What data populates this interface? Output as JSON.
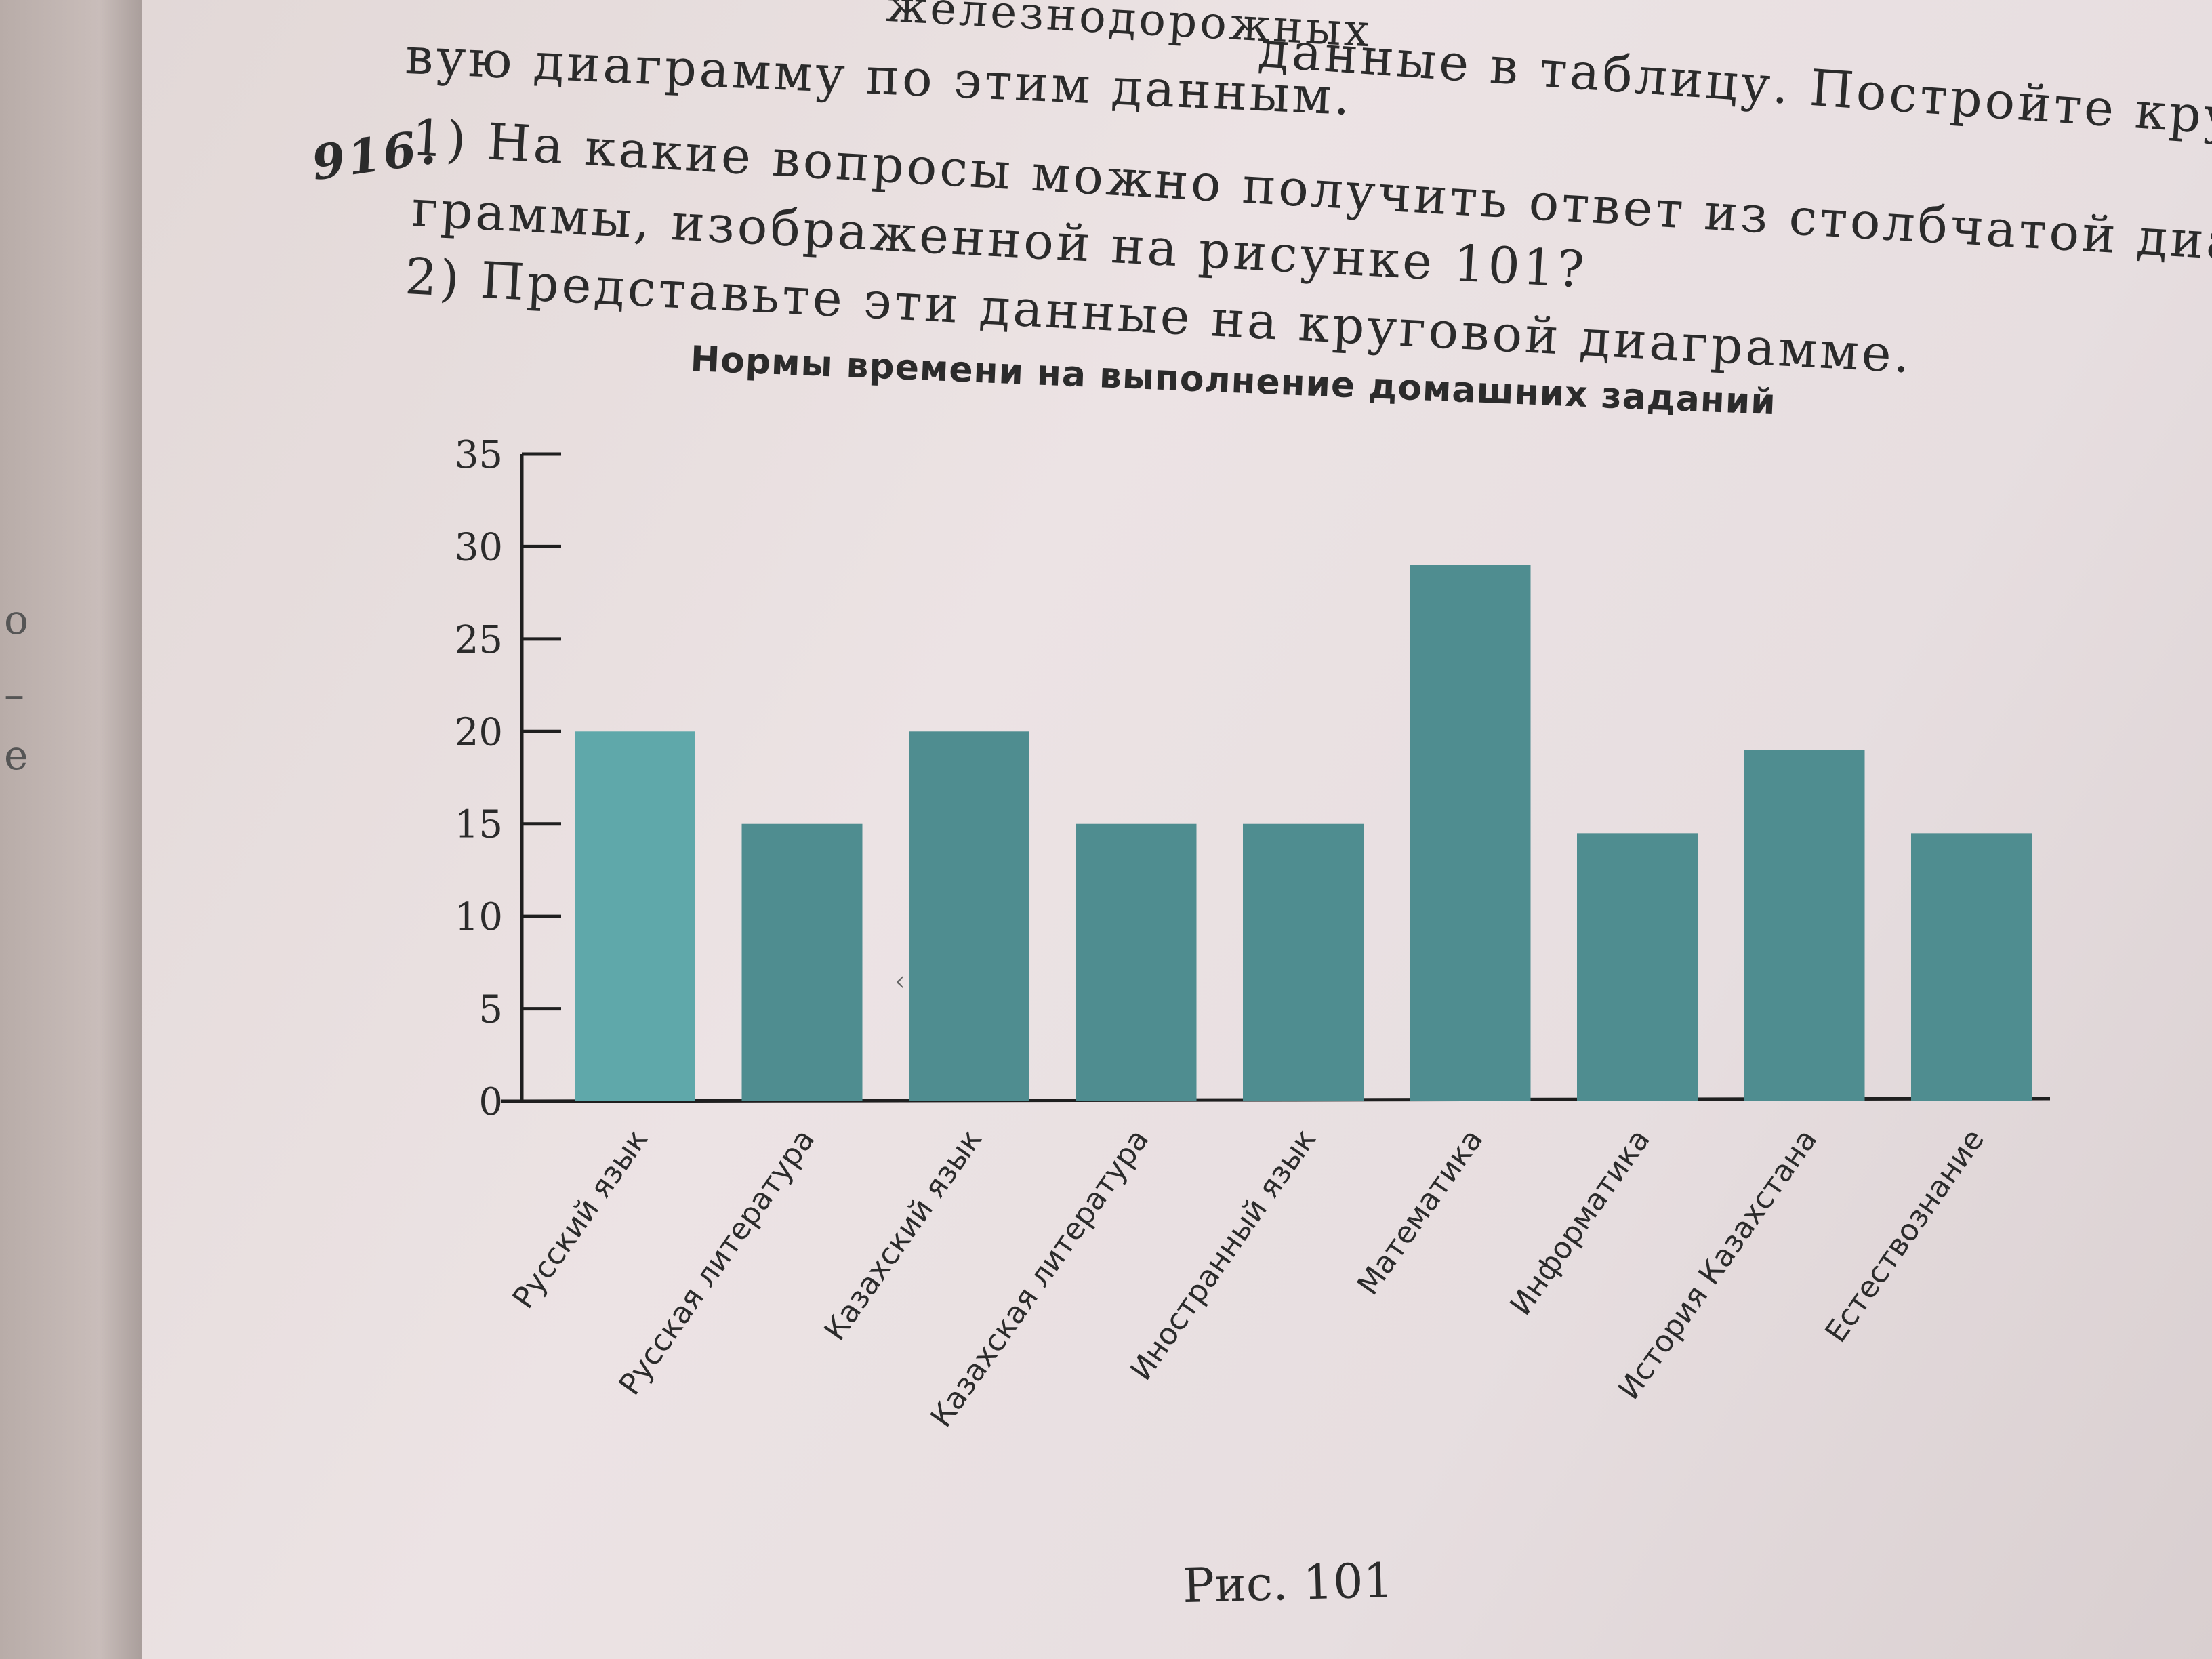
{
  "left_page": {
    "fragments": [
      "о",
      "–",
      "е"
    ]
  },
  "text": {
    "line_top": "вую диаграмму по этим данным.",
    "line_top_right": "данные в таблицу. Постройте круго-",
    "line_very_top_right": "железнодорожных",
    "exercise_number": "916.",
    "q1_part1": "1) На какие вопросы можно получить ответ из столбчатой диа-",
    "q1_part2": "граммы, изображенной на рисунке 101?",
    "q2": "2) Представьте эти данные на круговой диаграмме."
  },
  "caption": "Рис. 101",
  "colors": {
    "bar": "#4f8d90",
    "bar_light": "#5fa8aa",
    "axis": "#1f1f1f"
  },
  "chart_data": {
    "type": "bar",
    "title": "Нормы времени на выполнение домашних заданий",
    "categories": [
      "Русский язык",
      "Русская литература",
      "Казахский язык",
      "Казахская литература",
      "Иностранный язык",
      "Математика",
      "Информатика",
      "История Казахстана",
      "Естествознание"
    ],
    "values": [
      20,
      15,
      20,
      15,
      15,
      29,
      14.5,
      19,
      14.5
    ],
    "yticks": [
      0,
      5,
      10,
      15,
      20,
      25,
      30,
      35
    ],
    "ylim": [
      0,
      35
    ],
    "grid": false,
    "legend": false
  }
}
